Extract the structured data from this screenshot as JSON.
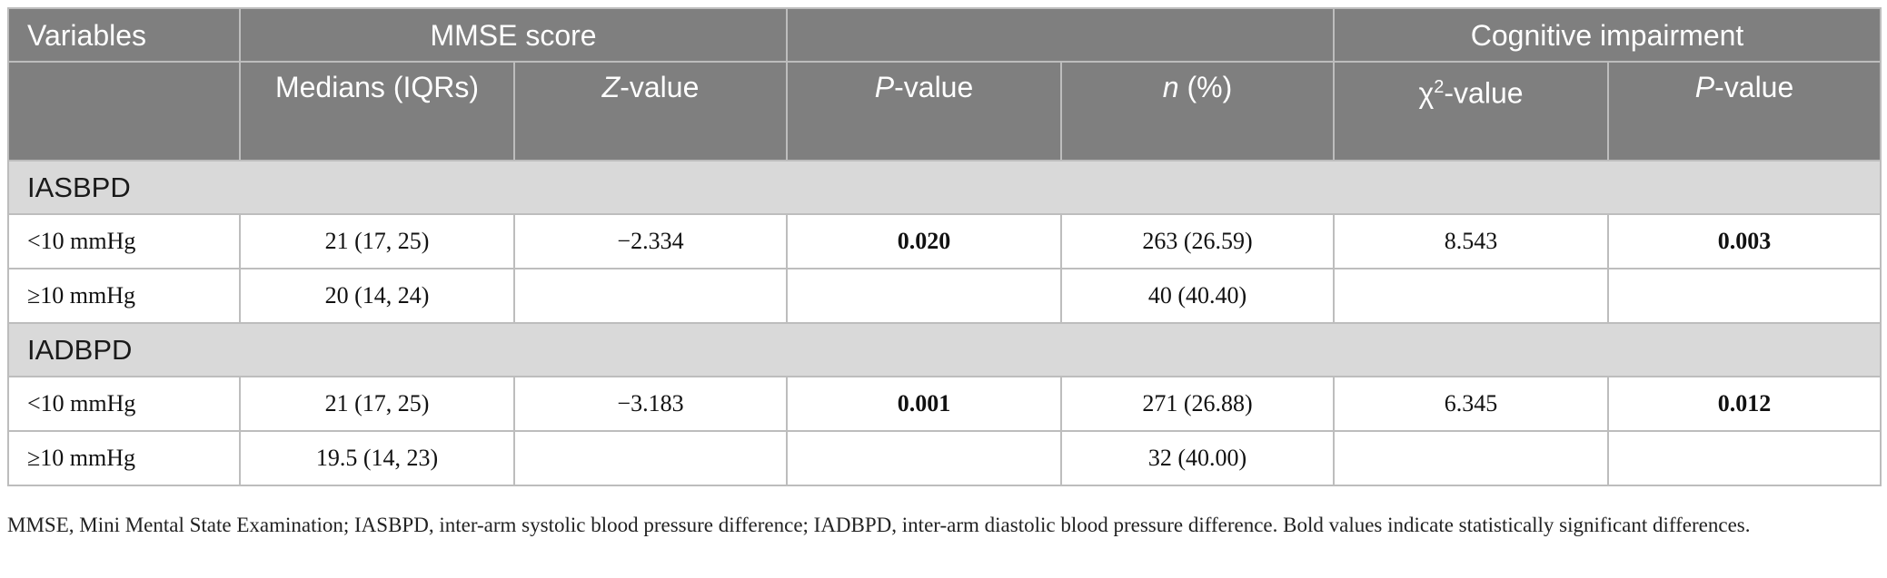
{
  "header": {
    "variables": "Variables",
    "mmse_group": "MMSE score",
    "blank_group": "",
    "cognitive_group": "Cognitive impairment",
    "sub": {
      "medians": "Medians (IQRs)",
      "z_value_italic": "Z",
      "z_value_rest": "-value",
      "p_value_italic": "P",
      "p_value_rest": "-value",
      "n_italic": "n",
      "n_rest": " (%)",
      "chi_prefix": "χ",
      "chi_sup": "2",
      "chi_rest": "-value",
      "p2_value_italic": "P",
      "p2_value_rest": "-value"
    }
  },
  "groups": [
    {
      "title": "IASBPD",
      "rows": [
        {
          "label": "<10 mmHg",
          "median": "21 (17, 25)",
          "z": "−2.334",
          "p": "0.020",
          "n": "263 (26.59)",
          "chi": "8.543",
          "p2": "0.003"
        },
        {
          "label": "≥10 mmHg",
          "median": "20 (14, 24)",
          "z": "",
          "p": "",
          "n": "40 (40.40)",
          "chi": "",
          "p2": ""
        }
      ]
    },
    {
      "title": "IADBPD",
      "rows": [
        {
          "label": "<10 mmHg",
          "median": "21 (17, 25)",
          "z": "−3.183",
          "p": "0.001",
          "n": "271 (26.88)",
          "chi": "6.345",
          "p2": "0.012"
        },
        {
          "label": "≥10 mmHg",
          "median": "19.5 (14, 23)",
          "z": "",
          "p": "",
          "n": "32 (40.00)",
          "chi": "",
          "p2": ""
        }
      ]
    }
  ],
  "footnote": "MMSE, Mini Mental State Examination; IASBPD, inter-arm systolic blood pressure difference; IADBPD, inter-arm diastolic blood pressure difference. Bold values indicate statistically significant differences."
}
